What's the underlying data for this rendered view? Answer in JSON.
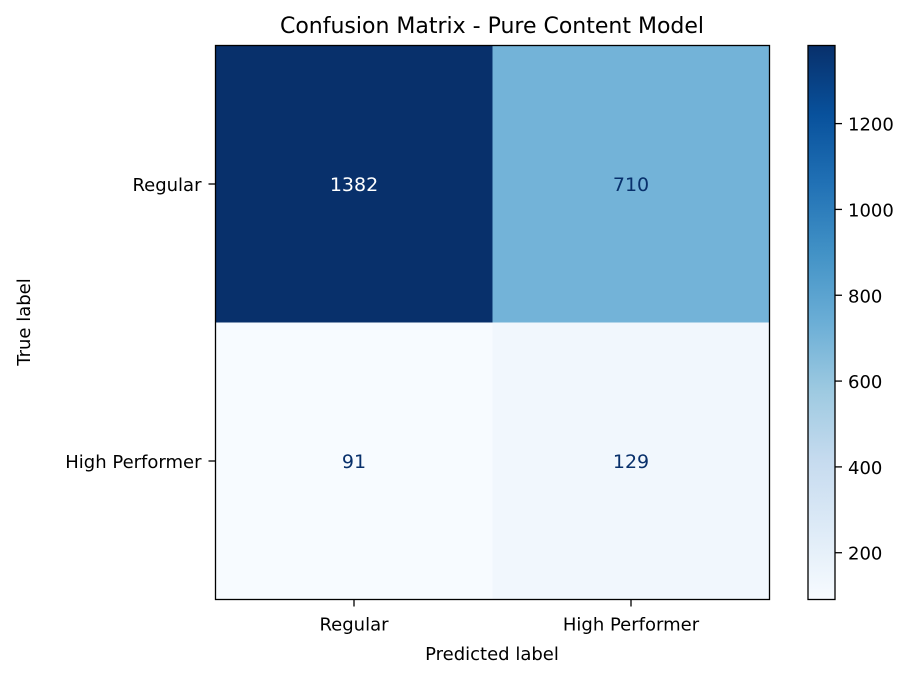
{
  "chart_data": {
    "type": "heatmap",
    "title": "Confusion Matrix - Pure Content Model",
    "xlabel": "Predicted label",
    "ylabel": "True label",
    "x_categories": [
      "Regular",
      "High Performer"
    ],
    "y_categories": [
      "Regular",
      "High Performer"
    ],
    "values": [
      [
        1382,
        710
      ],
      [
        91,
        129
      ]
    ],
    "value_labels": [
      [
        "1382",
        "710"
      ],
      [
        "91",
        "129"
      ]
    ],
    "colormap": "Blues",
    "color_range": [
      91,
      1382
    ],
    "colorbar": {
      "ticks": [
        200,
        400,
        600,
        800,
        1000,
        1200
      ],
      "tick_labels": [
        "200",
        "400",
        "600",
        "800",
        "1000",
        "1200"
      ],
      "position": "right"
    },
    "text_colors": {
      "on_dark": "#ffffff",
      "on_light": "#08306b"
    },
    "grid": false
  }
}
